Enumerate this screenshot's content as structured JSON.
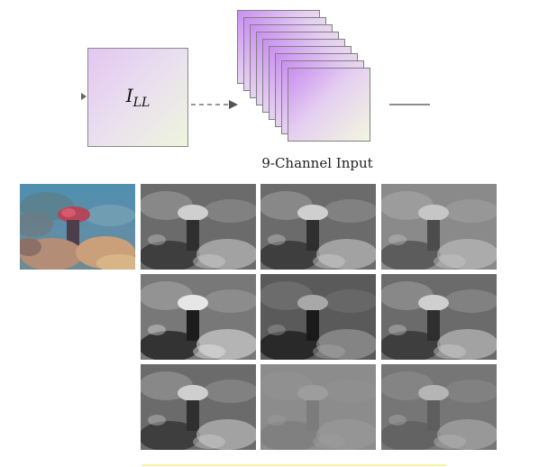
{
  "block_label": {
    "main": "I",
    "subscript": "LL"
  },
  "stack_caption": "9-Channel Input",
  "stack_layer_count": 9,
  "colors": {
    "block_gradient_start": "#e3c6f1",
    "block_gradient_end": "#eef5dc",
    "arrow": "#666666",
    "bottom_rule": "#fbf1a3"
  },
  "rgb_image": {
    "description_icon": "underwater-coral-photo"
  },
  "channel_images": [
    {
      "tone": "grayscale-bright"
    },
    {
      "tone": "grayscale-bright"
    },
    {
      "tone": "grayscale-soft"
    },
    {
      "tone": "grayscale-segmented"
    },
    {
      "tone": "grayscale-dark"
    },
    {
      "tone": "grayscale-bright"
    },
    {
      "tone": "grayscale-bright"
    },
    {
      "tone": "grayscale-flat"
    },
    {
      "tone": "grayscale-mid"
    }
  ]
}
